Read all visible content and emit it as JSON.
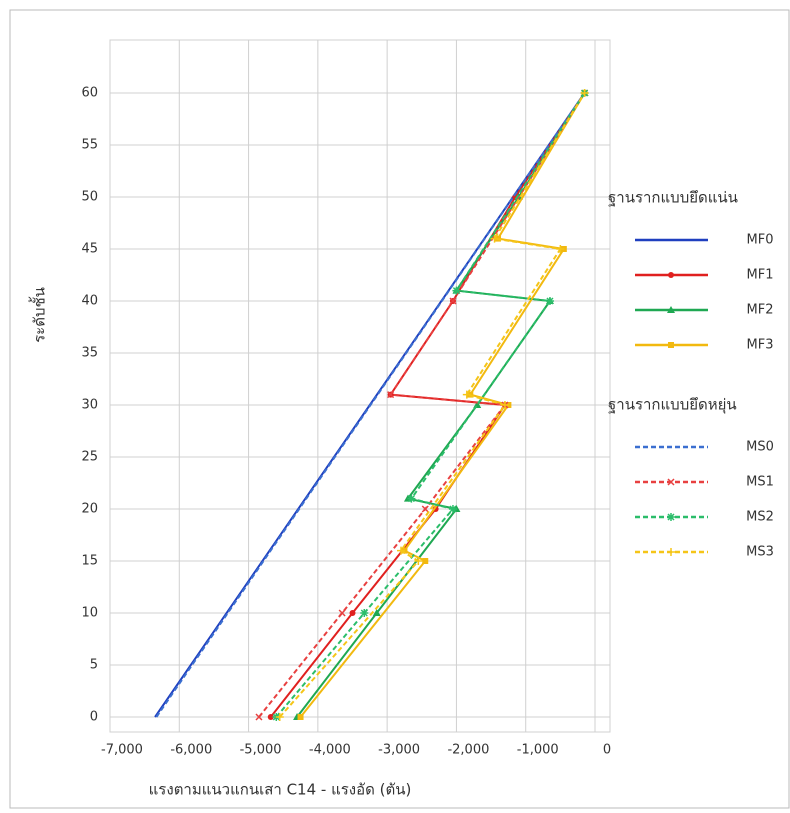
{
  "chart_data": {
    "type": "line",
    "xlabel": "แรงตามแนวแกนเสา C14 - แรงอัด (ตัน)",
    "ylabel": "ระดับชั้น",
    "xlim": [
      -7000,
      0
    ],
    "ylim": [
      0,
      60
    ],
    "xticks": [
      {
        "value": -7000,
        "label": "-7,000"
      },
      {
        "value": -6000,
        "label": "-6,000"
      },
      {
        "value": -5000,
        "label": "-5,000"
      },
      {
        "value": -4000,
        "label": "-4,000"
      },
      {
        "value": -3000,
        "label": "-3,000"
      },
      {
        "value": -2000,
        "label": "-2,000"
      },
      {
        "value": -1000,
        "label": "-1,000"
      },
      0
    ],
    "yticks": [
      0,
      5,
      10,
      15,
      20,
      25,
      30,
      35,
      40,
      45,
      50,
      55,
      60
    ],
    "grid": true,
    "legend_titles": [
      "ฐานรากแบบยึดแน่น",
      "ฐานรากแบบยึดหยุ่น"
    ],
    "series": [
      {
        "name": "MF0",
        "color": "#1f3fbf",
        "dash": false,
        "marker": "none",
        "x": [
          -6350,
          -150
        ],
        "y": [
          0,
          60
        ]
      },
      {
        "name": "MF1",
        "color": "#e0201f",
        "dash": false,
        "marker": "circle",
        "x": [
          -4680,
          -3500,
          -2300,
          -1300,
          -2950,
          -2050,
          -1150,
          -150
        ],
        "y": [
          0,
          10,
          20,
          30,
          31,
          40,
          50,
          60
        ]
      },
      {
        "name": "MF2",
        "color": "#1fa852",
        "dash": false,
        "marker": "triangle",
        "x": [
          -4300,
          -3150,
          -2000,
          -2700,
          -1700,
          -650,
          -2000,
          -1100,
          -150
        ],
        "y": [
          0,
          10,
          20,
          21,
          30,
          40,
          41,
          50,
          60
        ]
      },
      {
        "name": "MF3",
        "color": "#f2b90f",
        "dash": false,
        "marker": "square",
        "x": [
          -4250,
          -2450,
          -2750,
          -1250,
          -1800,
          -450,
          -1400,
          -150
        ],
        "y": [
          0,
          15,
          16,
          30,
          31,
          45,
          46,
          60
        ]
      },
      {
        "name": "MS0",
        "color": "#3b6fd0",
        "dash": true,
        "marker": "none",
        "x": [
          -6330,
          -150
        ],
        "y": [
          0,
          60
        ]
      },
      {
        "name": "MS1",
        "color": "#e84040",
        "dash": true,
        "marker": "x",
        "x": [
          -4850,
          -3650,
          -2450,
          -1300,
          -2950,
          -2050,
          -150
        ],
        "y": [
          0,
          10,
          20,
          30,
          31,
          40,
          60
        ]
      },
      {
        "name": "MS2",
        "color": "#2bbd6a",
        "dash": true,
        "marker": "star",
        "x": [
          -4600,
          -3330,
          -2050,
          -2650,
          -650,
          -2000,
          -150
        ],
        "y": [
          0,
          10,
          20,
          21,
          40,
          41,
          60
        ]
      },
      {
        "name": "MS3",
        "color": "#f5c518",
        "dash": true,
        "marker": "plus",
        "x": [
          -4550,
          -2550,
          -2800,
          -1300,
          -1850,
          -500,
          -1450,
          -150
        ],
        "y": [
          0,
          15,
          16,
          30,
          31,
          45,
          46,
          60
        ]
      }
    ]
  }
}
